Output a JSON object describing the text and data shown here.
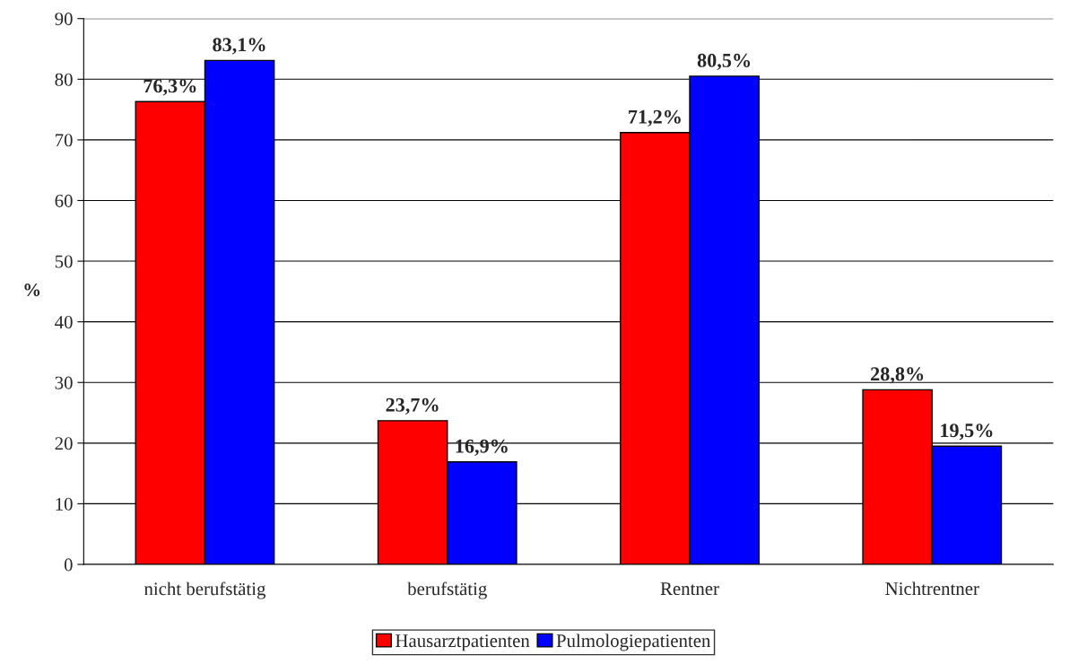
{
  "chart_data": {
    "type": "bar",
    "ylabel": "%",
    "categories": [
      "nicht berufstätig",
      "berufstätig",
      "Rentner",
      "Nichtrentner"
    ],
    "series": [
      {
        "name": "Hausarztpatienten",
        "color": "#ff0000",
        "values": [
          76.3,
          23.7,
          71.2,
          28.8
        ],
        "value_labels": [
          "76,3%",
          "23,7%",
          "71,2%",
          "28,8%"
        ]
      },
      {
        "name": "Pulmologiepatienten",
        "color": "#0000ff",
        "values": [
          83.1,
          16.9,
          80.5,
          19.5
        ],
        "value_labels": [
          "83,1%",
          "16,9%",
          "80,5%",
          "19,5%"
        ]
      }
    ],
    "ylim": [
      0,
      90
    ],
    "yticks": [
      0,
      10,
      20,
      30,
      40,
      50,
      60,
      70,
      80,
      90
    ],
    "grid": "y",
    "legend": "bottom"
  }
}
